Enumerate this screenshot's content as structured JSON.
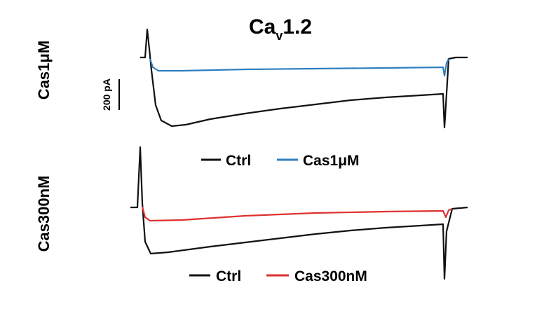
{
  "title": {
    "main": "Ca",
    "sub": "v",
    "rest": "1.2"
  },
  "scale_bar": "200 pA",
  "panels": [
    {
      "label": "Cas1μM",
      "legend": [
        "Ctrl",
        "Cas1μM"
      ]
    },
    {
      "label": "Cas300nM",
      "legend": [
        "Ctrl",
        "Cas300nM"
      ]
    }
  ]
}
